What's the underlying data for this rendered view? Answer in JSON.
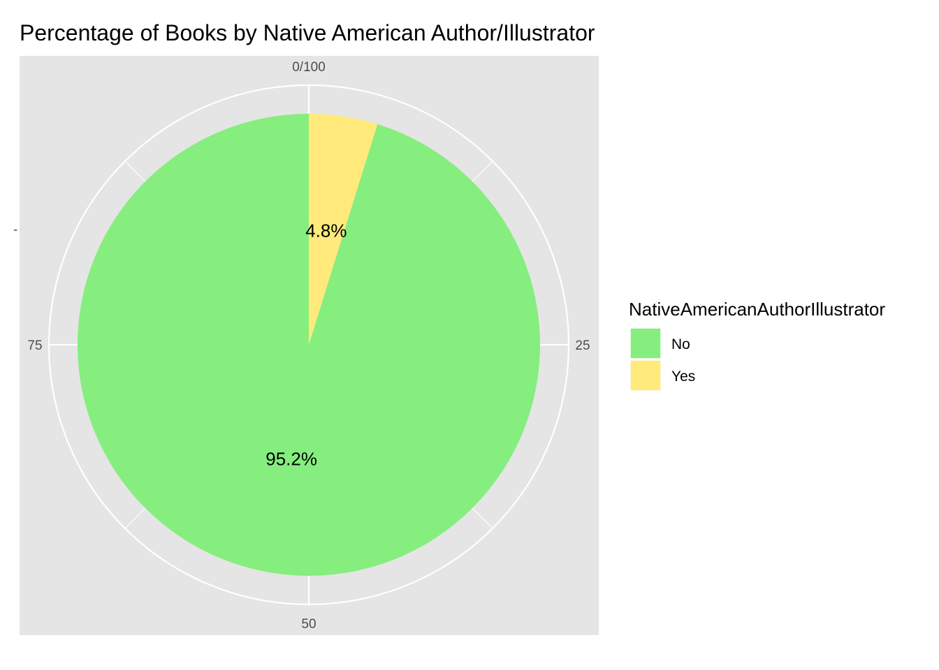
{
  "chart_data": {
    "type": "pie",
    "title": "Percentage of Books by Native American Author/Illustrator",
    "categories": [
      "No",
      "Yes"
    ],
    "values": [
      95.2,
      4.8
    ],
    "labels": [
      "95.2%",
      "4.8%"
    ],
    "colors": [
      "#86ee7f",
      "#ffea7b"
    ],
    "theta_ticks": [
      {
        "value": 0,
        "label": "0/100"
      },
      {
        "value": 25,
        "label": "25"
      },
      {
        "value": 50,
        "label": "50"
      },
      {
        "value": 75,
        "label": "75"
      }
    ],
    "y_tick_label": "-",
    "legend": {
      "title": "NativeAmericanAuthorIllustrator",
      "placement": "right",
      "entries": [
        "No",
        "Yes"
      ]
    },
    "panel_background": "#e5e5e5",
    "grid": true
  }
}
